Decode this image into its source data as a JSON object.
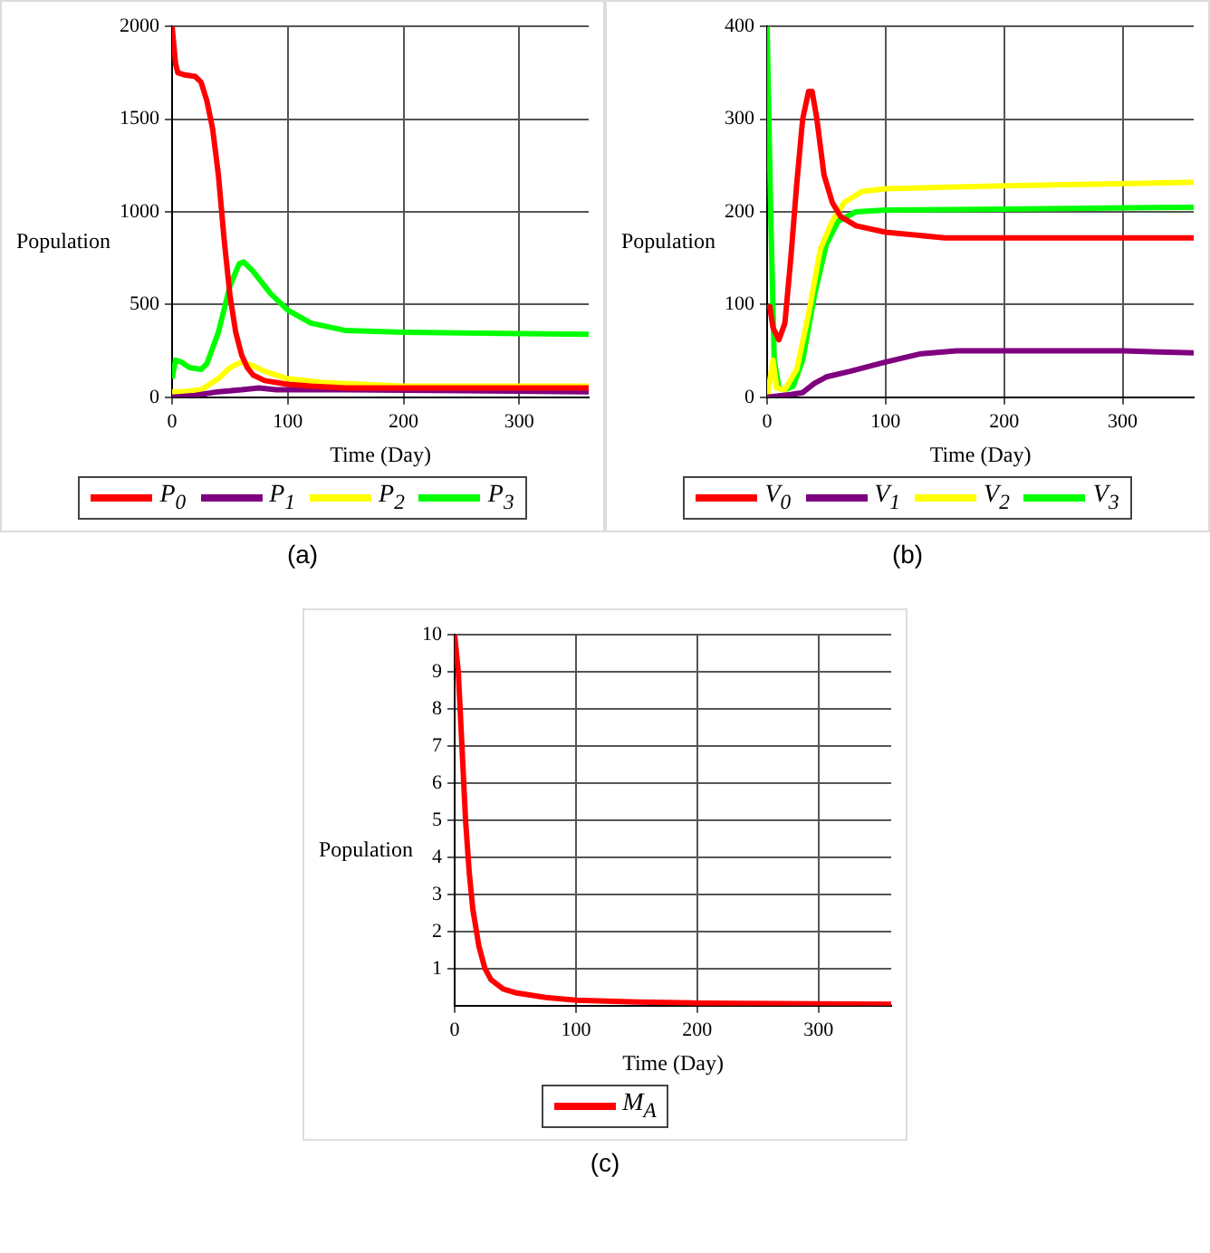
{
  "chart_data": [
    {
      "type": "line",
      "xlabel": "Time (Day)",
      "ylabel": "Population",
      "xlim": [
        0,
        360
      ],
      "ylim": [
        0,
        2000
      ],
      "xticks": [
        0,
        100,
        200,
        300
      ],
      "yticks": [
        0,
        500,
        1000,
        1500,
        2000
      ],
      "grid": true,
      "legend": "bottom",
      "annotations": [
        "(a)"
      ],
      "series": [
        {
          "name": "P$_{0}$",
          "color": "#ff0000",
          "x": [
            0,
            3,
            5,
            10,
            20,
            25,
            30,
            35,
            40,
            45,
            50,
            55,
            60,
            65,
            70,
            80,
            100,
            120,
            150,
            200,
            360
          ],
          "values": [
            2000,
            1800,
            1750,
            1740,
            1730,
            1700,
            1600,
            1450,
            1200,
            850,
            550,
            350,
            230,
            160,
            120,
            90,
            70,
            60,
            50,
            50,
            50
          ]
        },
        {
          "name": "P$_{1}$",
          "color": "#7f007f",
          "x": [
            0,
            20,
            40,
            60,
            75,
            90,
            150,
            360
          ],
          "values": [
            0,
            10,
            30,
            40,
            50,
            40,
            40,
            30
          ]
        },
        {
          "name": "P$_{2}$",
          "color": "#ffff00",
          "x": [
            0,
            10,
            25,
            40,
            50,
            60,
            70,
            80,
            100,
            130,
            200,
            360
          ],
          "values": [
            30,
            30,
            40,
            100,
            160,
            190,
            170,
            140,
            100,
            80,
            60,
            60
          ]
        },
        {
          "name": "P$_{3}$",
          "color": "#00ff00",
          "x": [
            0,
            3,
            8,
            15,
            25,
            30,
            40,
            50,
            58,
            62,
            70,
            85,
            100,
            120,
            150,
            200,
            360
          ],
          "values": [
            100,
            200,
            190,
            160,
            150,
            180,
            350,
            600,
            720,
            730,
            680,
            560,
            470,
            400,
            360,
            350,
            340
          ]
        }
      ]
    },
    {
      "type": "line",
      "xlabel": "Time (Day)",
      "ylabel": "Population",
      "xlim": [
        0,
        360
      ],
      "ylim": [
        0,
        400
      ],
      "xticks": [
        0,
        100,
        200,
        300
      ],
      "yticks": [
        0,
        100,
        200,
        300,
        400
      ],
      "grid": true,
      "legend": "bottom",
      "annotations": [
        "(b)"
      ],
      "series": [
        {
          "name": "V$_{0}$",
          "color": "#ff0000",
          "x": [
            2,
            5,
            10,
            15,
            20,
            25,
            30,
            35,
            38,
            42,
            48,
            55,
            62,
            75,
            100,
            150,
            360
          ],
          "values": [
            100,
            75,
            62,
            80,
            150,
            230,
            300,
            330,
            330,
            300,
            240,
            210,
            195,
            185,
            178,
            172,
            172
          ]
        },
        {
          "name": "V$_{1}$",
          "color": "#7f007f",
          "x": [
            0,
            20,
            30,
            40,
            50,
            70,
            100,
            130,
            160,
            300,
            360
          ],
          "values": [
            0,
            3,
            5,
            15,
            22,
            28,
            38,
            47,
            50,
            50,
            48
          ]
        },
        {
          "name": "V$_{2}$",
          "color": "#ffff00",
          "x": [
            0,
            5,
            8,
            15,
            25,
            35,
            45,
            55,
            65,
            80,
            100,
            200,
            360
          ],
          "values": [
            0,
            40,
            10,
            8,
            30,
            90,
            160,
            190,
            210,
            222,
            225,
            228,
            232
          ]
        },
        {
          "name": "V$_{3}$",
          "color": "#00ff00",
          "x": [
            0,
            3,
            6,
            10,
            15,
            22,
            30,
            40,
            50,
            60,
            75,
            100,
            200,
            360
          ],
          "values": [
            400,
            200,
            40,
            10,
            8,
            12,
            40,
            110,
            165,
            190,
            200,
            202,
            203,
            205
          ]
        }
      ]
    },
    {
      "type": "line",
      "xlabel": "Time (Day)",
      "ylabel": "Population",
      "xlim": [
        0,
        360
      ],
      "ylim": [
        0,
        10
      ],
      "xticks": [
        0,
        100,
        200,
        300
      ],
      "yticks": [
        1,
        2,
        3,
        4,
        5,
        6,
        7,
        8,
        9,
        10
      ],
      "grid": true,
      "legend": "bottom",
      "annotations": [
        "(c)"
      ],
      "series": [
        {
          "name": "M$_{A}$",
          "color": "#ff0000",
          "x": [
            0,
            3,
            6,
            9,
            12,
            15,
            20,
            25,
            30,
            40,
            50,
            75,
            100,
            150,
            200,
            360
          ],
          "values": [
            10,
            9,
            7,
            5,
            3.6,
            2.6,
            1.6,
            1,
            0.7,
            0.45,
            0.35,
            0.22,
            0.15,
            0.1,
            0.07,
            0.04
          ]
        }
      ]
    }
  ]
}
